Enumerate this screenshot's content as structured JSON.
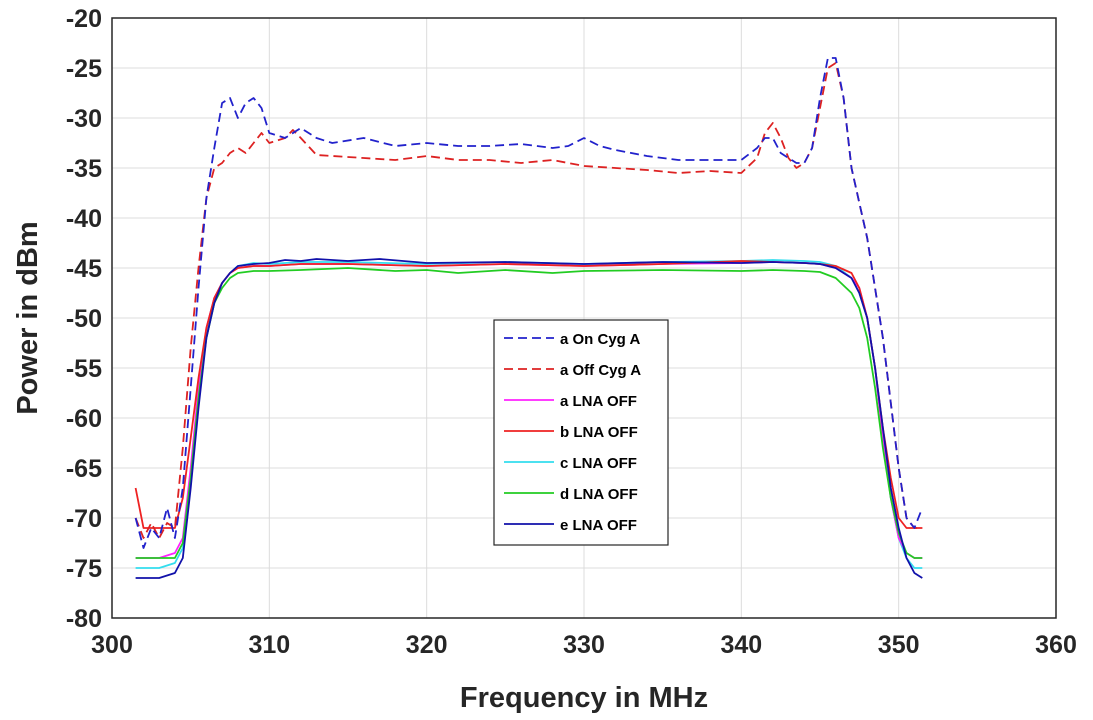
{
  "chart_data": {
    "type": "line",
    "title": "",
    "xlabel": "Frequency in MHz",
    "ylabel": "Power in dBm",
    "xlim": [
      300,
      360
    ],
    "ylim": [
      -80,
      -20
    ],
    "xticks": [
      300,
      310,
      320,
      330,
      340,
      350,
      360
    ],
    "yticks": [
      -20,
      -25,
      -30,
      -35,
      -40,
      -45,
      -50,
      -55,
      -60,
      -65,
      -70,
      -75,
      -80
    ],
    "grid": true,
    "legend_position": "center",
    "series": [
      {
        "name": "a On Cyg A",
        "color": "#2222cc",
        "style": "dashed",
        "x": [
          301.5,
          302,
          302.5,
          303,
          303.5,
          304,
          304.5,
          305,
          305.5,
          306,
          306.5,
          307,
          307.5,
          308,
          308.5,
          309,
          309.5,
          310,
          311,
          312,
          313,
          314,
          316,
          318,
          320,
          322,
          324,
          326,
          328,
          329,
          330,
          331,
          332,
          334,
          336,
          338,
          340,
          341,
          341.5,
          342,
          342.5,
          343,
          343.5,
          344,
          344.5,
          345,
          345.5,
          346,
          346.5,
          347,
          348,
          349,
          350,
          350.5,
          351,
          351.5
        ],
        "y": [
          -70,
          -73,
          -71,
          -72,
          -69,
          -72,
          -67,
          -57,
          -47,
          -38,
          -33,
          -28.5,
          -28,
          -30,
          -28.5,
          -28,
          -29,
          -31.5,
          -32,
          -31,
          -32,
          -32.5,
          -32,
          -32.8,
          -32.5,
          -32.8,
          -32.8,
          -32.6,
          -33,
          -32.8,
          -32,
          -32.8,
          -33.2,
          -33.8,
          -34.2,
          -34.2,
          -34.2,
          -33,
          -32,
          -32,
          -33.5,
          -34,
          -34.5,
          -34.5,
          -33,
          -28,
          -24,
          -24,
          -28,
          -35,
          -42,
          -52,
          -65,
          -70,
          -71,
          -69
        ]
      },
      {
        "name": "a Off Cyg A",
        "color": "#dd2222",
        "style": "dashed",
        "x": [
          301.5,
          302,
          302.5,
          303,
          303.5,
          304,
          304.5,
          305,
          305.5,
          306,
          306.5,
          307,
          307.5,
          308,
          308.5,
          309,
          309.5,
          310,
          311,
          311.5,
          312,
          313,
          314,
          316,
          318,
          320,
          322,
          324,
          326,
          328,
          330,
          332,
          334,
          336,
          338,
          340,
          341,
          341.5,
          342,
          342.5,
          343,
          343.5,
          344,
          344.5,
          345,
          345.5,
          346,
          346.5,
          347,
          348,
          349,
          350,
          350.5,
          351,
          351.5
        ],
        "y": [
          -70,
          -72,
          -70.5,
          -72,
          -70.5,
          -71,
          -63,
          -53,
          -45,
          -38,
          -35,
          -34.5,
          -33.5,
          -33,
          -33.5,
          -32.5,
          -31.5,
          -32.5,
          -32,
          -31.2,
          -32,
          -33.7,
          -33.8,
          -34,
          -34.2,
          -33.8,
          -34.2,
          -34.2,
          -34.5,
          -34.2,
          -34.8,
          -35,
          -35.2,
          -35.5,
          -35.3,
          -35.5,
          -34,
          -31.5,
          -30.5,
          -32,
          -34,
          -35,
          -34.5,
          -33,
          -29,
          -25,
          -24.5,
          -28,
          -35,
          -42,
          -52,
          -65,
          -70,
          -71,
          -71
        ]
      },
      {
        "name": "a LNA OFF",
        "color": "#ff22ff",
        "style": "solid",
        "x": [
          301.5,
          302,
          303,
          304,
          304.5,
          305,
          305.5,
          306,
          306.5,
          307,
          307.5,
          308,
          309,
          310,
          312,
          315,
          320,
          325,
          330,
          335,
          340,
          342,
          344,
          345,
          346,
          347,
          347.5,
          348,
          348.5,
          349,
          349.5,
          350,
          350.5,
          351,
          351.5
        ],
        "y": [
          -74,
          -74,
          -74,
          -73.5,
          -72,
          -65,
          -57,
          -51,
          -48,
          -46.5,
          -45.5,
          -45,
          -44.8,
          -44.8,
          -44.6,
          -44.6,
          -44.8,
          -44.6,
          -44.8,
          -44.6,
          -44.5,
          -44.4,
          -44.5,
          -44.6,
          -45,
          -46,
          -47,
          -50,
          -55,
          -62,
          -68,
          -72,
          -73.5,
          -74,
          -74
        ]
      },
      {
        "name": "b LNA OFF",
        "color": "#ee2222",
        "style": "solid",
        "x": [
          301.5,
          302,
          303,
          303.5,
          304,
          304.5,
          305,
          305.5,
          306,
          306.5,
          307,
          307.5,
          308,
          309,
          310,
          312,
          315,
          320,
          325,
          330,
          335,
          340,
          342,
          344,
          345,
          346,
          347,
          347.5,
          348,
          348.5,
          349,
          349.5,
          350,
          350.5,
          351,
          351.5
        ],
        "y": [
          -67,
          -71,
          -71,
          -71,
          -71,
          -68,
          -62,
          -56,
          -51,
          -48,
          -46.5,
          -45.5,
          -45,
          -44.8,
          -44.8,
          -44.6,
          -44.6,
          -44.8,
          -44.6,
          -44.8,
          -44.6,
          -44.3,
          -44.4,
          -44.5,
          -44.6,
          -44.8,
          -45.5,
          -47,
          -50,
          -55,
          -61,
          -66,
          -70,
          -71,
          -71,
          -71
        ]
      },
      {
        "name": "c LNA OFF",
        "color": "#33ddee",
        "style": "solid",
        "x": [
          301.5,
          302,
          303,
          304,
          304.5,
          305,
          305.5,
          306,
          306.5,
          307,
          307.5,
          308,
          309,
          310,
          312,
          315,
          320,
          325,
          330,
          335,
          340,
          342,
          344,
          345,
          346,
          347,
          347.5,
          348,
          348.5,
          349,
          349.5,
          350,
          350.5,
          351,
          351.5
        ],
        "y": [
          -75,
          -75,
          -75,
          -74.5,
          -73,
          -66,
          -58,
          -51.5,
          -48,
          -46.5,
          -45.5,
          -44.8,
          -44.5,
          -44.6,
          -44.4,
          -44.4,
          -44.6,
          -44.4,
          -44.6,
          -44.4,
          -44.3,
          -44.2,
          -44.3,
          -44.4,
          -44.8,
          -46,
          -47.5,
          -50,
          -55,
          -62,
          -68,
          -72,
          -74,
          -75,
          -75
        ]
      },
      {
        "name": "d LNA OFF",
        "color": "#22cc22",
        "style": "solid",
        "x": [
          301.5,
          302,
          303,
          304,
          304.5,
          305,
          305.5,
          306,
          306.5,
          307,
          307.5,
          308,
          309,
          310,
          312,
          315,
          318,
          320,
          322,
          325,
          328,
          330,
          335,
          340,
          342,
          344,
          345,
          346,
          347,
          347.5,
          348,
          348.5,
          349,
          349.5,
          350,
          350.5,
          351,
          351.5
        ],
        "y": [
          -74,
          -74,
          -74,
          -74,
          -72.5,
          -66,
          -58,
          -52,
          -48.5,
          -47,
          -46,
          -45.5,
          -45.3,
          -45.3,
          -45.2,
          -45,
          -45.3,
          -45.2,
          -45.5,
          -45.2,
          -45.5,
          -45.3,
          -45.2,
          -45.3,
          -45.2,
          -45.3,
          -45.4,
          -46,
          -47.5,
          -49,
          -52,
          -57,
          -63,
          -68,
          -71.5,
          -73.5,
          -74,
          -74
        ]
      },
      {
        "name": "e LNA OFF",
        "color": "#1111aa",
        "style": "solid",
        "x": [
          301.5,
          302,
          303,
          304,
          304.5,
          305,
          305.5,
          306,
          306.5,
          307,
          307.5,
          308,
          309,
          310,
          311,
          312,
          313,
          315,
          317,
          320,
          325,
          330,
          335,
          340,
          342,
          344,
          345,
          346,
          347,
          347.5,
          348,
          348.5,
          349,
          349.5,
          350,
          350.5,
          351,
          351.5
        ],
        "y": [
          -76,
          -76,
          -76,
          -75.5,
          -74,
          -67,
          -59,
          -52,
          -48.5,
          -46.5,
          -45.5,
          -44.8,
          -44.6,
          -44.5,
          -44.2,
          -44.3,
          -44.1,
          -44.3,
          -44.1,
          -44.5,
          -44.4,
          -44.6,
          -44.4,
          -44.5,
          -44.4,
          -44.5,
          -44.6,
          -45,
          -46,
          -47.5,
          -50,
          -55,
          -61,
          -67,
          -71,
          -74,
          -75.5,
          -76
        ]
      }
    ]
  }
}
